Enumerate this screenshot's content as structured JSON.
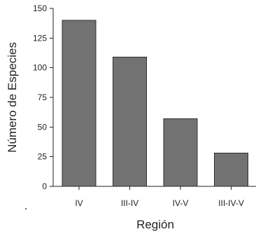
{
  "chart_data": {
    "type": "bar",
    "categories": [
      "IV",
      "III-IV",
      "IV-V",
      "III-IV-V"
    ],
    "values": [
      140,
      109,
      57,
      28
    ],
    "title": "",
    "xlabel": "Región",
    "ylabel": "Número de Especies",
    "ylim": [
      0,
      150
    ],
    "yticks": [
      0,
      25,
      50,
      75,
      100,
      125,
      150
    ],
    "grid": false,
    "legend": "none",
    "bar_color": "#727272"
  }
}
